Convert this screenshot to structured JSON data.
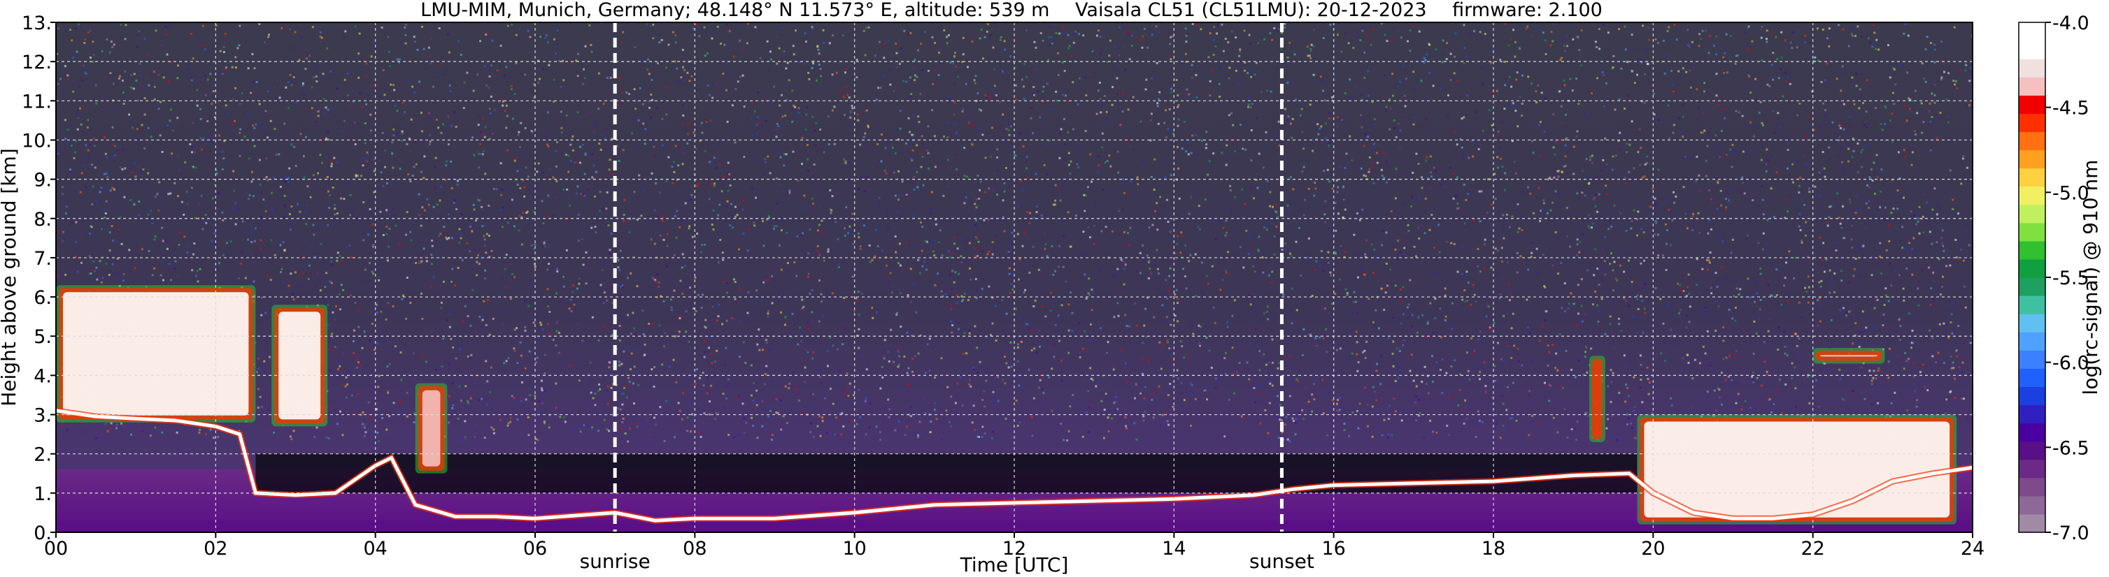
{
  "chart_data": {
    "type": "heatmap",
    "title_station": "LMU-MIM, Munich, Germany; 48.148° N 11.573° E, altitude: 539 m",
    "title_instrument": "Vaisala CL51 (CL51LMU): 20-12-2023",
    "title_firmware": "firmware: 2.100",
    "xlabel": "Time [UTC]",
    "ylabel": "Height above ground [km]",
    "xlim": [
      0,
      24
    ],
    "ylim": [
      0,
      13
    ],
    "x_ticks": [
      {
        "v": 0,
        "label": "00"
      },
      {
        "v": 2,
        "label": "02"
      },
      {
        "v": 4,
        "label": "04"
      },
      {
        "v": 6,
        "label": "06"
      },
      {
        "v": 8,
        "label": "08"
      },
      {
        "v": 10,
        "label": "10"
      },
      {
        "v": 12,
        "label": "12"
      },
      {
        "v": 14,
        "label": "14"
      },
      {
        "v": 16,
        "label": "16"
      },
      {
        "v": 18,
        "label": "18"
      },
      {
        "v": 20,
        "label": "20"
      },
      {
        "v": 22,
        "label": "22"
      },
      {
        "v": 24,
        "label": "24"
      }
    ],
    "y_ticks": [
      {
        "v": 0,
        "label": "0."
      },
      {
        "v": 1,
        "label": "1."
      },
      {
        "v": 2,
        "label": "2."
      },
      {
        "v": 3,
        "label": "3."
      },
      {
        "v": 4,
        "label": "4."
      },
      {
        "v": 5,
        "label": "5."
      },
      {
        "v": 6,
        "label": "6."
      },
      {
        "v": 7,
        "label": "7."
      },
      {
        "v": 8,
        "label": "8."
      },
      {
        "v": 9,
        "label": "9."
      },
      {
        "v": 10,
        "label": "10."
      },
      {
        "v": 11,
        "label": "11."
      },
      {
        "v": 12,
        "label": "12."
      },
      {
        "v": 13,
        "label": "13."
      }
    ],
    "grid": true,
    "annotations": [
      {
        "label": "sunrise",
        "x": 7.0
      },
      {
        "label": "sunset",
        "x": 15.35
      }
    ],
    "colorbar": {
      "label": "log(rc-signal) @ 910 nm",
      "range": [
        -7.0,
        -4.0
      ],
      "ticks": [
        {
          "v": -4.0,
          "label": "-4.0"
        },
        {
          "v": -4.5,
          "label": "-4.5"
        },
        {
          "v": -5.0,
          "label": "-5.0"
        },
        {
          "v": -5.5,
          "label": "-5.5"
        },
        {
          "v": -6.0,
          "label": "-6.0"
        },
        {
          "v": -6.5,
          "label": "-6.5"
        },
        {
          "v": -7.0,
          "label": "-7.0"
        }
      ],
      "colors_low_to_high": [
        "#a08aa4",
        "#8e6896",
        "#7d4a8b",
        "#6a2a86",
        "#5a0f86",
        "#4a00a0",
        "#3020c0",
        "#1a40e0",
        "#2060ff",
        "#3a80ff",
        "#50a0ff",
        "#60c0f0",
        "#40c0a0",
        "#20a060",
        "#10a040",
        "#30c030",
        "#80e040",
        "#c0f060",
        "#f0f060",
        "#ffd040",
        "#ffa020",
        "#ff7010",
        "#ff3000",
        "#f00000",
        "#f4c0c0",
        "#f0e0e0",
        "#ffffff",
        "#ffffff"
      ]
    },
    "cloud_base_layer_km": [
      [
        0.0,
        3.1
      ],
      [
        0.5,
        2.95
      ],
      [
        1.0,
        2.9
      ],
      [
        1.5,
        2.85
      ],
      [
        2.0,
        2.7
      ],
      [
        2.3,
        2.5
      ],
      [
        2.5,
        1.0
      ],
      [
        3.0,
        0.95
      ],
      [
        3.5,
        1.0
      ],
      [
        4.0,
        1.7
      ],
      [
        4.2,
        1.9
      ],
      [
        4.5,
        0.7
      ],
      [
        5.0,
        0.4
      ],
      [
        5.5,
        0.4
      ],
      [
        6.0,
        0.35
      ],
      [
        7.0,
        0.5
      ],
      [
        7.5,
        0.3
      ],
      [
        8.0,
        0.35
      ],
      [
        9.0,
        0.35
      ],
      [
        10.0,
        0.5
      ],
      [
        11.0,
        0.7
      ],
      [
        12.0,
        0.75
      ],
      [
        13.0,
        0.8
      ],
      [
        14.0,
        0.85
      ],
      [
        15.0,
        0.95
      ],
      [
        15.5,
        1.1
      ],
      [
        16.0,
        1.2
      ],
      [
        17.0,
        1.25
      ],
      [
        18.0,
        1.3
      ],
      [
        19.0,
        1.45
      ],
      [
        19.7,
        1.5
      ],
      [
        20.0,
        1.0
      ],
      [
        20.5,
        0.5
      ],
      [
        21.0,
        0.35
      ],
      [
        21.5,
        0.35
      ],
      [
        22.0,
        0.45
      ],
      [
        22.5,
        0.8
      ],
      [
        23.0,
        1.3
      ],
      [
        23.5,
        1.5
      ],
      [
        24.0,
        1.65
      ]
    ],
    "features": [
      {
        "name": "night aerosol/cloud layer",
        "x": [
          0.0,
          2.5
        ],
        "y": [
          2.8,
          6.3
        ],
        "peak": -4.6
      },
      {
        "name": "cloud patch",
        "x": [
          2.7,
          3.4
        ],
        "y": [
          2.7,
          5.8
        ],
        "peak": -4.6
      },
      {
        "name": "cloud patch",
        "x": [
          4.5,
          4.9
        ],
        "y": [
          1.5,
          3.8
        ],
        "peak": -4.8
      },
      {
        "name": "cloud patch",
        "x": [
          19.2,
          19.4
        ],
        "y": [
          2.3,
          4.5
        ],
        "peak": -4.9
      },
      {
        "name": "precipitation/cloud",
        "x": [
          19.8,
          23.8
        ],
        "y": [
          0.2,
          3.0
        ],
        "peak": -5.0
      },
      {
        "name": "elevated thin cloud",
        "x": [
          22.0,
          22.9
        ],
        "y": [
          4.3,
          4.7
        ],
        "peak": -4.8
      }
    ]
  }
}
